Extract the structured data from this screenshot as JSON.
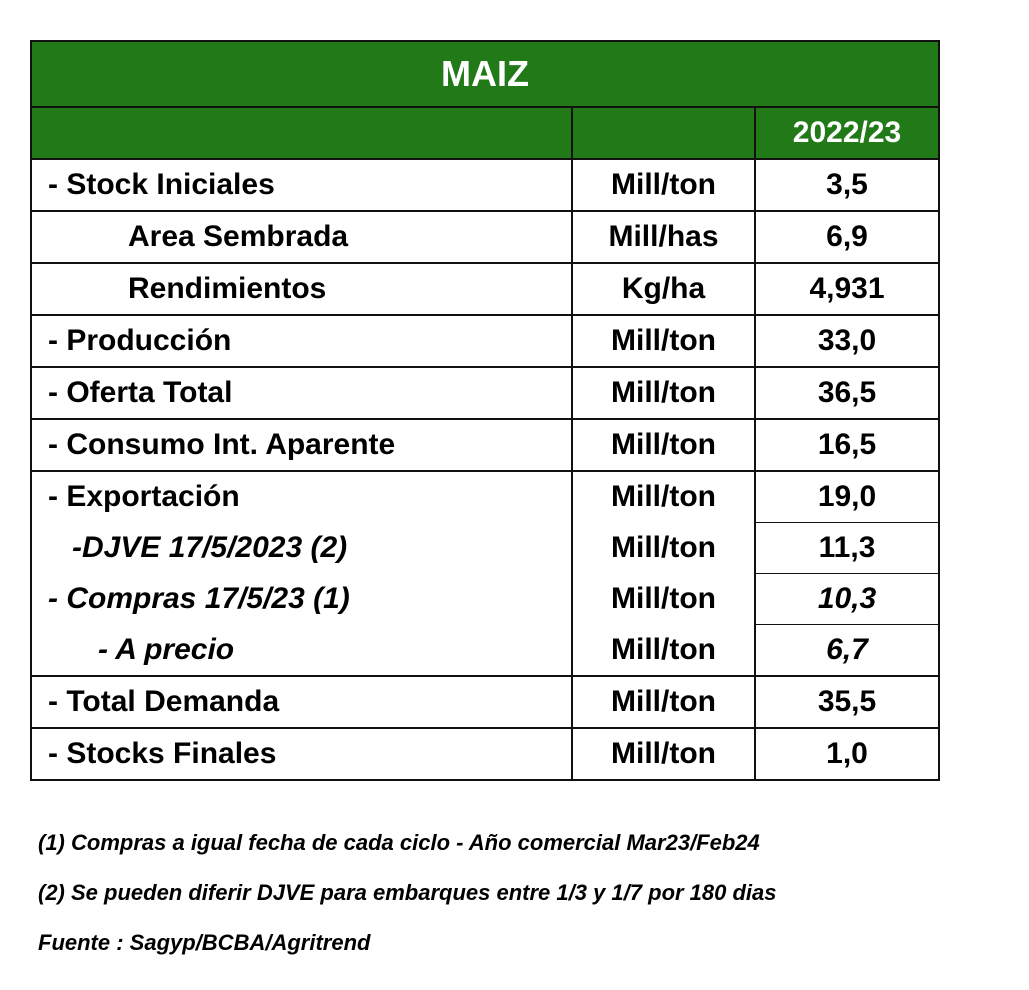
{
  "table": {
    "title": "MAIZ",
    "column_header": {
      "label": "",
      "unit": "",
      "year": "2022/23"
    },
    "rows": [
      {
        "label": "- Stock Iniciales",
        "unit": "Mill/ton",
        "value": "3,5"
      },
      {
        "label": "Area Sembrada",
        "unit": "Mill/has",
        "value": "6,9"
      },
      {
        "label": "Rendimientos",
        "unit": "Kg/ha",
        "value": "4,931"
      },
      {
        "label": "- Producción",
        "unit": "Mill/ton",
        "value": "33,0"
      },
      {
        "label": "- Oferta Total",
        "unit": "Mill/ton",
        "value": "36,5"
      },
      {
        "label": "- Consumo Int. Aparente",
        "unit": "Mill/ton",
        "value": "16,5"
      },
      {
        "label": "- Exportación",
        "unit": "Mill/ton",
        "value": "19,0"
      },
      {
        "label": "-DJVE 17/5/2023 (2)",
        "unit": "Mill/ton",
        "value": "11,3"
      },
      {
        "label": "- Compras 17/5/23 (1)",
        "unit": "Mill/ton",
        "value": "10,3"
      },
      {
        "label": "- A precio",
        "unit": "Mill/ton",
        "value": "6,7"
      },
      {
        "label": "- Total Demanda",
        "unit": "Mill/ton",
        "value": "35,5"
      },
      {
        "label": "- Stocks Finales",
        "unit": "Mill/ton",
        "value": "1,0"
      }
    ]
  },
  "notes": [
    "(1) Compras a igual fecha de cada ciclo - Año comercial Mar23/Feb24",
    "(2) Se pueden diferir DJVE para embarques entre 1/3 y 1/7 por 180 dias",
    "Fuente : Sagyp/BCBA/Agritrend"
  ],
  "colors": {
    "header_green": "#217a17",
    "header_text": "#ffffff"
  }
}
